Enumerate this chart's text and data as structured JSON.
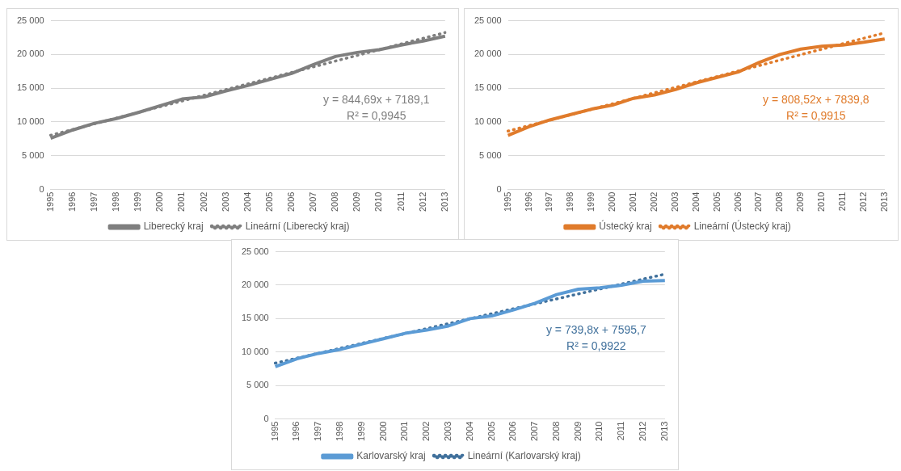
{
  "chart_data": [
    {
      "type": "line",
      "categories": [
        "1995",
        "1996",
        "1997",
        "1998",
        "1999",
        "2000",
        "2001",
        "2002",
        "2003",
        "2004",
        "2005",
        "2006",
        "2007",
        "2008",
        "2009",
        "2010",
        "2011",
        "2012",
        "2013"
      ],
      "series": [
        {
          "name": "Liberecký kraj",
          "color": "#7f7f7f",
          "line_style": "solid",
          "values": [
            7600,
            8800,
            9800,
            10500,
            11400,
            12400,
            13400,
            13700,
            14600,
            15400,
            16300,
            17200,
            18500,
            19700,
            20300,
            20700,
            21400,
            22000,
            22700
          ]
        },
        {
          "name": "Lineární (Liberecký kraj)",
          "color": "#7f7f7f",
          "line_style": "dotted",
          "values": [
            8030,
            8880,
            9720,
            10570,
            11410,
            12260,
            13100,
            13950,
            14790,
            15640,
            16480,
            17330,
            18170,
            19020,
            19860,
            20700,
            21550,
            22390,
            23240
          ]
        }
      ],
      "ylim": [
        0,
        25000
      ],
      "yticks": [
        {
          "value": 0,
          "label": "0"
        },
        {
          "value": 5000,
          "label": "5 000"
        },
        {
          "value": 10000,
          "label": "10 000"
        },
        {
          "value": 15000,
          "label": "15 000"
        },
        {
          "value": 20000,
          "label": "20 000"
        },
        {
          "value": 25000,
          "label": "25 000"
        }
      ],
      "grid": "y",
      "legend": "bottom",
      "marker": "none",
      "annotations": [
        "y = 844,69x + 7189,1",
        "R² = 0,9945"
      ]
    },
    {
      "type": "line",
      "categories": [
        "1995",
        "1996",
        "1997",
        "1998",
        "1999",
        "2000",
        "2001",
        "2002",
        "2003",
        "2004",
        "2005",
        "2006",
        "2007",
        "2008",
        "2009",
        "2010",
        "2011",
        "2012",
        "2013"
      ],
      "series": [
        {
          "name": "Ústecký kraj",
          "color": "#e07b2b",
          "line_style": "solid",
          "values": [
            8000,
            9300,
            10300,
            11100,
            11900,
            12500,
            13500,
            14000,
            14800,
            15800,
            16600,
            17400,
            18800,
            20000,
            20800,
            21200,
            21400,
            21800,
            22300
          ]
        },
        {
          "name": "Lineární (Ústecký kraj)",
          "color": "#e07b2b",
          "line_style": "dotted",
          "values": [
            8650,
            9460,
            10270,
            11070,
            11880,
            12690,
            13500,
            14310,
            15120,
            15930,
            16730,
            17540,
            18350,
            19160,
            19970,
            20780,
            21590,
            22390,
            23200
          ]
        }
      ],
      "ylim": [
        0,
        25000
      ],
      "yticks": [
        {
          "value": 0,
          "label": "0"
        },
        {
          "value": 5000,
          "label": "5 000"
        },
        {
          "value": 10000,
          "label": "10 000"
        },
        {
          "value": 15000,
          "label": "15 000"
        },
        {
          "value": 20000,
          "label": "20 000"
        },
        {
          "value": 25000,
          "label": "25 000"
        }
      ],
      "grid": "y",
      "legend": "bottom",
      "marker": "none",
      "annotations": [
        "y = 808,52x + 7839,8",
        "R² = 0,9915"
      ]
    },
    {
      "type": "line",
      "categories": [
        "1995",
        "1996",
        "1997",
        "1998",
        "1999",
        "2000",
        "2001",
        "2002",
        "2003",
        "2004",
        "2005",
        "2006",
        "2007",
        "2008",
        "2009",
        "2010",
        "2011",
        "2012",
        "2013"
      ],
      "series": [
        {
          "name": "Karlovarský kraj",
          "color": "#5b9bd5",
          "line_style": "solid",
          "values": [
            7800,
            9000,
            9800,
            10400,
            11200,
            12000,
            12800,
            13300,
            13900,
            15000,
            15400,
            16300,
            17300,
            18600,
            19400,
            19600,
            20000,
            20600,
            20700
          ]
        },
        {
          "name": "Lineární (Karlovarský kraj)",
          "color": "#41719c",
          "line_style": "dotted",
          "values": [
            8340,
            9080,
            9820,
            10560,
            11300,
            12040,
            12770,
            13510,
            14250,
            14990,
            15730,
            16470,
            17210,
            17950,
            18690,
            19430,
            20170,
            20910,
            21650
          ]
        }
      ],
      "ylim": [
        0,
        25000
      ],
      "yticks": [
        {
          "value": 0,
          "label": "0"
        },
        {
          "value": 5000,
          "label": "5 000"
        },
        {
          "value": 10000,
          "label": "10 000"
        },
        {
          "value": 15000,
          "label": "15 000"
        },
        {
          "value": 20000,
          "label": "20 000"
        },
        {
          "value": 25000,
          "label": "25 000"
        }
      ],
      "grid": "y",
      "legend": "bottom",
      "marker": "none",
      "annotations": [
        "y = 739,8x + 7595,7",
        "R² = 0,9922"
      ]
    }
  ]
}
